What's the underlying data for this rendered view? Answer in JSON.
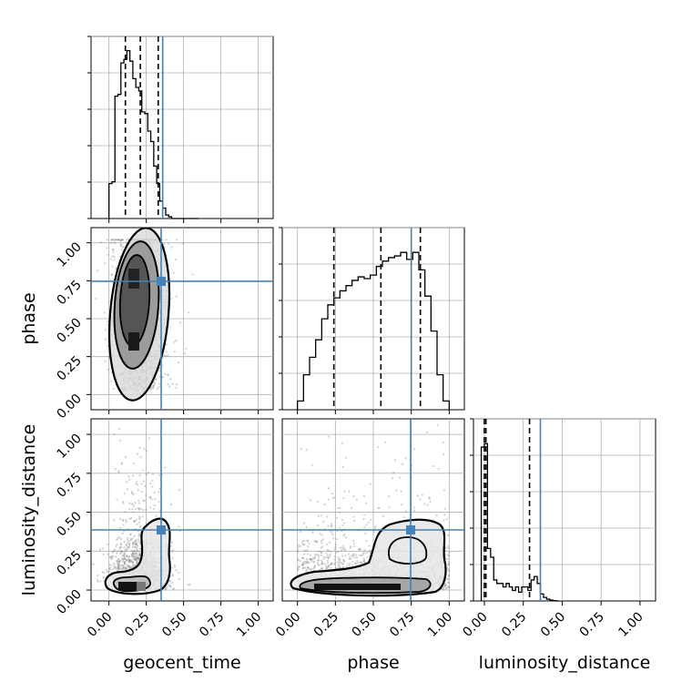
{
  "chart_data": {
    "type": "corner",
    "parameters": [
      "geocent_time",
      "phase",
      "luminosity_distance"
    ],
    "tick_labels": [
      "0.00",
      "0.25",
      "0.50",
      "0.75",
      "1.00"
    ],
    "ylabels": [
      "phase",
      "luminosity_distance"
    ],
    "xlabels": [
      "geocent_time",
      "phase",
      "luminosity_distance"
    ],
    "ranges": [
      [
        -0.12,
        1.1
      ],
      [
        -0.1,
        1.1
      ],
      [
        -0.07,
        1.1
      ]
    ],
    "truths": [
      0.36,
      0.75,
      0.36
    ],
    "truth_color": "#4682b4",
    "grid": true,
    "histograms": [
      {
        "parameter": "geocent_time",
        "bin_edges": [
          0.0,
          0.02,
          0.04,
          0.06,
          0.08,
          0.1,
          0.12,
          0.14,
          0.16,
          0.18,
          0.2,
          0.22,
          0.24,
          0.26,
          0.28,
          0.3,
          0.32,
          0.34,
          0.36,
          0.38,
          0.4,
          0.42,
          0.44,
          0.46,
          0.48,
          0.5,
          0.52,
          0.54,
          0.56,
          0.58,
          0.6
        ],
        "counts": [
          0.2,
          0.21,
          0.7,
          0.71,
          0.89,
          0.91,
          0.96,
          0.9,
          0.8,
          0.75,
          0.73,
          0.61,
          0.6,
          0.5,
          0.44,
          0.3,
          0.2,
          0.1,
          0.06,
          0.02,
          0.01,
          0.0,
          0.0,
          0.0,
          0.0,
          0.0,
          0.0,
          0.0,
          0.0,
          0.0
        ],
        "quantiles": [
          0.11,
          0.21,
          0.33
        ]
      },
      {
        "parameter": "phase",
        "bin_edges": [
          0.0,
          0.04,
          0.08,
          0.12,
          0.16,
          0.2,
          0.24,
          0.28,
          0.32,
          0.36,
          0.4,
          0.44,
          0.48,
          0.52,
          0.56,
          0.6,
          0.64,
          0.68,
          0.72,
          0.76,
          0.8,
          0.84,
          0.88,
          0.92,
          0.96,
          1.0
        ],
        "counts": [
          0.05,
          0.2,
          0.3,
          0.4,
          0.52,
          0.6,
          0.64,
          0.68,
          0.71,
          0.74,
          0.76,
          0.75,
          0.77,
          0.82,
          0.85,
          0.87,
          0.88,
          0.9,
          0.86,
          0.9,
          0.8,
          0.65,
          0.45,
          0.2,
          0.05
        ],
        "quantiles": [
          0.24,
          0.55,
          0.81
        ]
      },
      {
        "parameter": "luminosity_distance",
        "bin_edges": [
          -0.02,
          0.0,
          0.02,
          0.04,
          0.06,
          0.08,
          0.1,
          0.12,
          0.14,
          0.16,
          0.18,
          0.2,
          0.22,
          0.24,
          0.26,
          0.28,
          0.3,
          0.32,
          0.34,
          0.36,
          0.38,
          0.4,
          0.42,
          0.44,
          0.46,
          0.48
        ],
        "counts": [
          0.88,
          0.9,
          0.3,
          0.25,
          0.12,
          0.1,
          0.1,
          0.08,
          0.1,
          0.08,
          0.06,
          0.08,
          0.05,
          0.08,
          0.08,
          0.06,
          0.12,
          0.14,
          0.1,
          0.04,
          0.02,
          0.01,
          0.005,
          0.002,
          0.0
        ],
        "quantiles": [
          0.0,
          0.01,
          0.29
        ]
      }
    ],
    "joint_panels": [
      {
        "x_parameter": "geocent_time",
        "y_parameter": "phase",
        "samples": {
          "count": 3500,
          "x_mean": 0.21,
          "x_sd": 0.09,
          "y_mean": 0.55,
          "y_sd": 0.26
        }
      },
      {
        "x_parameter": "geocent_time",
        "y_parameter": "luminosity_distance",
        "samples": {
          "count": 3000,
          "x_mean": 0.2,
          "x_sd": 0.1,
          "y_mean": 0.08,
          "y_sd": 0.12
        }
      },
      {
        "x_parameter": "phase",
        "y_parameter": "luminosity_distance",
        "samples": {
          "count": 3500,
          "x_mean": 0.5,
          "x_sd": 0.27,
          "y_mean": 0.08,
          "y_sd": 0.12
        }
      }
    ]
  }
}
